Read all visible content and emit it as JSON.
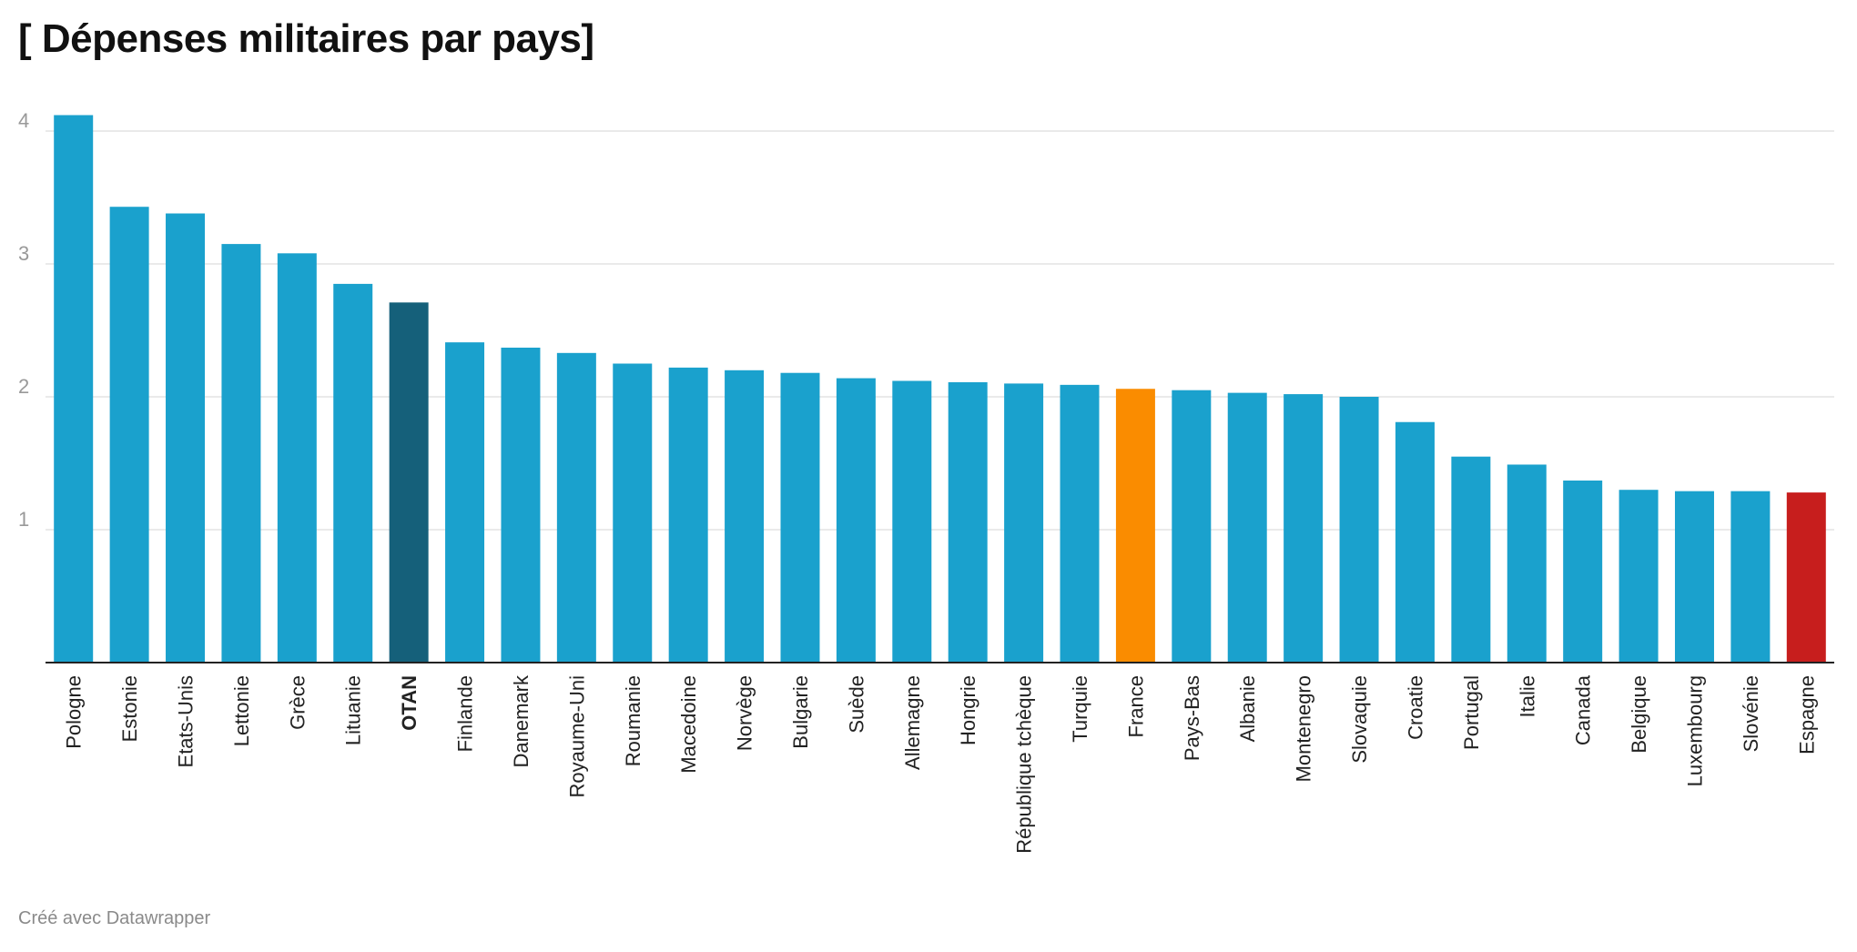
{
  "title": "[ Dépenses militaires par pays]",
  "footer": "Créé avec Datawrapper",
  "colors": {
    "default": "#1aa1cd",
    "otan": "#15607a",
    "france": "#fa8c00",
    "espagne": "#c71e1d",
    "grid": "#e3e3e3",
    "axis": "#222222"
  },
  "chart_data": {
    "type": "bar",
    "title": "[ Dépenses militaires par pays]",
    "xlabel": "",
    "ylabel": "",
    "ylim": [
      0,
      4.1
    ],
    "yticks": [
      1,
      2,
      3,
      4
    ],
    "grid": true,
    "legend": "none",
    "categories": [
      "Pologne",
      "Estonie",
      "Etats-Unis",
      "Lettonie",
      "Grèce",
      "Lituanie",
      "OTAN",
      "Finlande",
      "Danemark",
      "Royaume-Uni",
      "Roumanie",
      "Macedoine",
      "Norvège",
      "Bulgarie",
      "Suède",
      "Allemagne",
      "Hongrie",
      "République tchèque",
      "Turquie",
      "France",
      "Pays-Bas",
      "Albanie",
      "Montenegro",
      "Slovaquie",
      "Croatie",
      "Portugal",
      "Italie",
      "Canada",
      "Belgique",
      "Luxembourg",
      "Slovénie",
      "Espagne"
    ],
    "values": [
      4.12,
      3.43,
      3.38,
      3.15,
      3.08,
      2.85,
      2.71,
      2.41,
      2.37,
      2.33,
      2.25,
      2.22,
      2.2,
      2.18,
      2.14,
      2.12,
      2.11,
      2.1,
      2.09,
      2.06,
      2.05,
      2.03,
      2.02,
      2.0,
      1.81,
      1.55,
      1.49,
      1.37,
      1.3,
      1.29,
      1.29,
      1.28
    ],
    "highlight": {
      "OTAN": "#15607a",
      "France": "#fa8c00",
      "Espagne": "#c71e1d"
    }
  }
}
